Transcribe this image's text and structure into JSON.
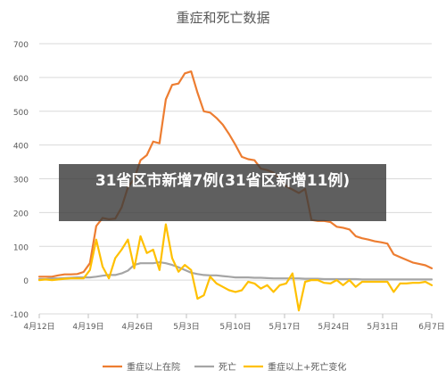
{
  "overlay_caption": "31省区市新增7例(31省区新增11例)",
  "chart_data": {
    "type": "line",
    "title": "重症和死亡数据",
    "xlabel": "",
    "ylabel": "",
    "ylim": [
      -100,
      700
    ],
    "yticks": [
      -100,
      0,
      100,
      200,
      300,
      400,
      500,
      600,
      700
    ],
    "x_tick_labels": [
      "4月12日",
      "4月19日",
      "4月26日",
      "5月3日",
      "5月10日",
      "5月17日",
      "5月24日",
      "5月31日",
      "6月7日"
    ],
    "x_tick_positions": [
      0,
      7,
      14,
      21,
      28,
      35,
      42,
      49,
      56
    ],
    "xlim": [
      0,
      56
    ],
    "grid": true,
    "legend_position": "bottom",
    "colors": {
      "severe": "#ED7D31",
      "death": "#A5A5A5",
      "change": "#FFC000"
    },
    "series": [
      {
        "name": "重症以上在院",
        "color": "#ED7D31",
        "values": [
          10,
          10,
          10,
          14,
          17,
          17,
          18,
          24,
          50,
          160,
          184,
          180,
          182,
          215,
          275,
          300,
          355,
          370,
          410,
          405,
          535,
          578,
          582,
          612,
          618,
          555,
          500,
          496,
          480,
          460,
          432,
          400,
          365,
          358,
          355,
          330,
          326,
          318,
          300,
          278,
          268,
          258,
          270,
          178,
          175,
          175,
          172,
          158,
          155,
          150,
          130,
          124,
          120,
          115,
          112,
          108,
          76,
          68,
          60,
          52,
          48,
          44,
          35
        ]
      },
      {
        "name": "死亡",
        "color": "#A5A5A5",
        "values": [
          3,
          3,
          5,
          5,
          6,
          7,
          8,
          8,
          8,
          10,
          13,
          15,
          15,
          20,
          28,
          45,
          50,
          50,
          50,
          53,
          50,
          45,
          38,
          30,
          22,
          18,
          15,
          14,
          14,
          12,
          10,
          8,
          8,
          8,
          7,
          7,
          6,
          5,
          5,
          5,
          5,
          5,
          4,
          4,
          4,
          3,
          3,
          3,
          3,
          3,
          3,
          2,
          2,
          2,
          2,
          2,
          2,
          2,
          2,
          2,
          2,
          2,
          2
        ]
      },
      {
        "name": "重症以上+死亡变化",
        "color": "#FFC000",
        "values": [
          0,
          2,
          0,
          2,
          4,
          5,
          5,
          5,
          30,
          120,
          40,
          5,
          65,
          90,
          120,
          35,
          130,
          80,
          90,
          30,
          165,
          65,
          25,
          45,
          30,
          -55,
          -45,
          10,
          -10,
          -20,
          -30,
          -35,
          -30,
          -5,
          -10,
          -25,
          -15,
          -35,
          -15,
          -10,
          20,
          -90,
          -5,
          0,
          0,
          -8,
          -10,
          0,
          -15,
          0,
          -20,
          -5,
          -5,
          -5,
          -5,
          -5,
          -35,
          -10,
          -10,
          -8,
          -8,
          -5,
          -15
        ]
      }
    ]
  }
}
